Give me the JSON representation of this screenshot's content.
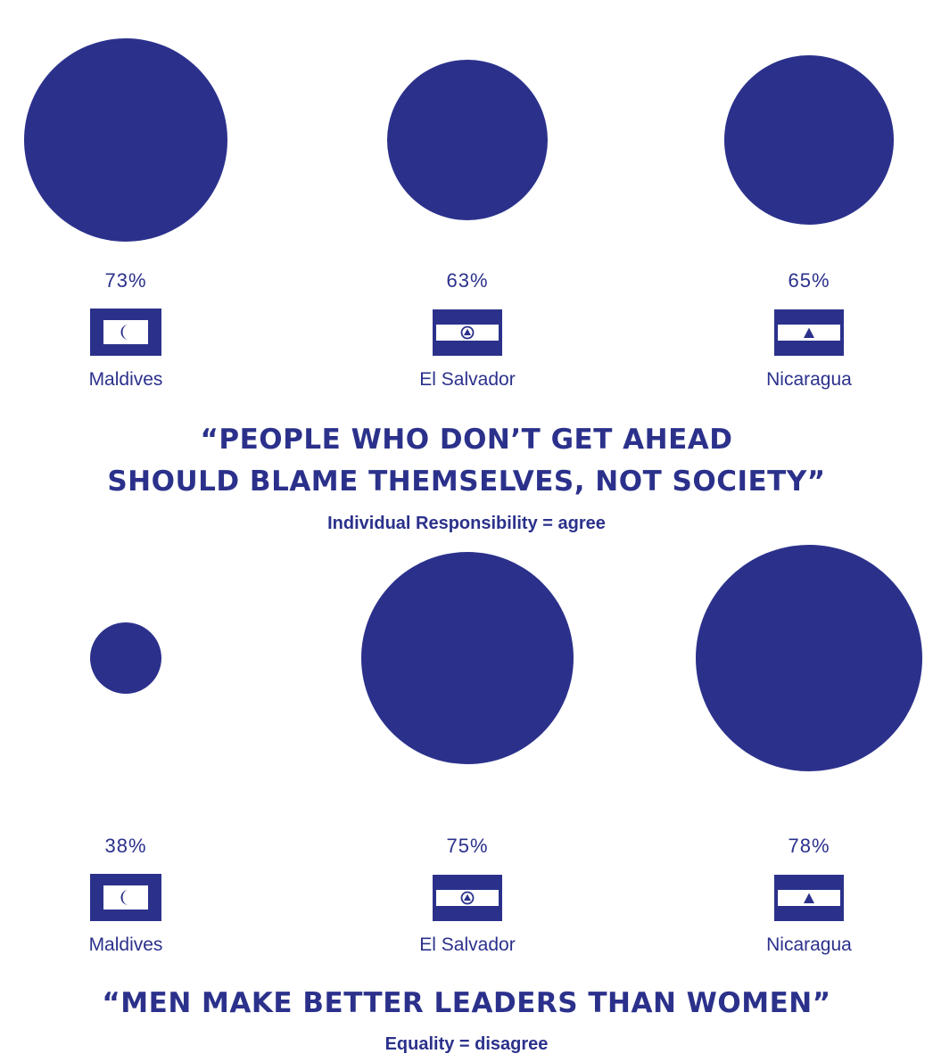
{
  "colors": {
    "primary": "#2b318b",
    "background": "#ffffff"
  },
  "chart_data": [
    {
      "type": "bubble",
      "title": "“People who don’t get ahead should blame themselves, not society”",
      "title_lines": [
        "“People who don’t get ahead",
        "should blame themselves, not society”"
      ],
      "subtitle": "Individual Responsibility = agree",
      "unit": "%",
      "categories": [
        "Maldives",
        "El Salvador",
        "Nicaragua"
      ],
      "values": [
        73,
        63,
        65
      ],
      "labels": [
        "73%",
        "63%",
        "65%"
      ],
      "flags": [
        "maldives-flag-icon",
        "el-salvador-flag-icon",
        "nicaragua-flag-icon"
      ]
    },
    {
      "type": "bubble",
      "title": "“Men make better leaders than women”",
      "title_lines": [
        "“Men make better leaders than women”"
      ],
      "subtitle": "Equality = disagree",
      "unit": "%",
      "categories": [
        "Maldives",
        "El Salvador",
        "Nicaragua"
      ],
      "values": [
        38,
        75,
        78
      ],
      "labels": [
        "38%",
        "75%",
        "78%"
      ],
      "flags": [
        "maldives-flag-icon",
        "el-salvador-flag-icon",
        "nicaragua-flag-icon"
      ]
    }
  ]
}
